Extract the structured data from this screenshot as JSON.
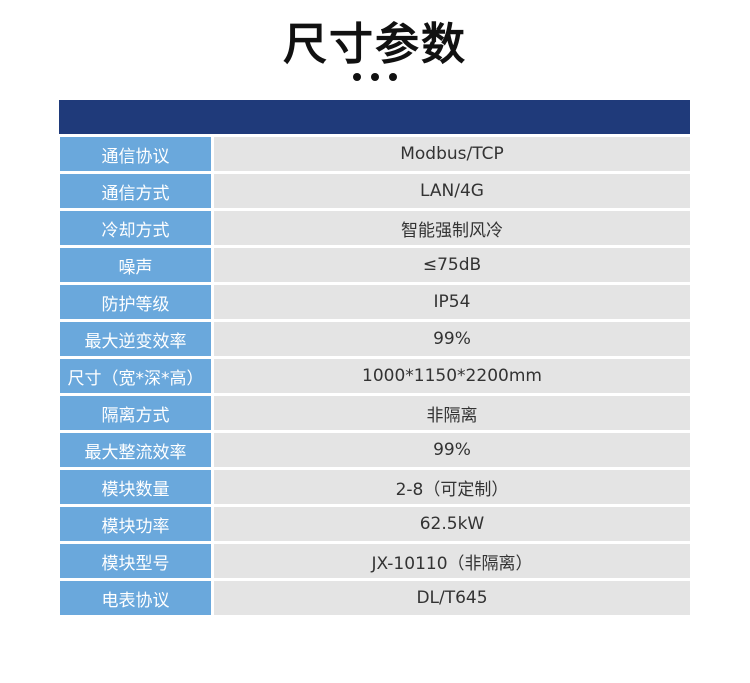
{
  "title": "尺寸参数",
  "colors": {
    "header": "#1f3a7a",
    "label_bg": "#6aa8dc",
    "value_bg": "#e4e4e4"
  },
  "rows": [
    {
      "label": "通信协议",
      "value": "Modbus/TCP"
    },
    {
      "label": "通信方式",
      "value": "LAN/4G"
    },
    {
      "label": "冷却方式",
      "value": "智能强制风冷"
    },
    {
      "label": "噪声",
      "value": "≤75dB"
    },
    {
      "label": "防护等级",
      "value": "IP54"
    },
    {
      "label": "最大逆变效率",
      "value": "99%"
    },
    {
      "label": "尺寸（宽*深*高）",
      "value": "1000*1150*2200mm"
    },
    {
      "label": "隔离方式",
      "value": "非隔离"
    },
    {
      "label": "最大整流效率",
      "value": "99%"
    },
    {
      "label": "模块数量",
      "value": "2-8（可定制）"
    },
    {
      "label": "模块功率",
      "value": "62.5kW"
    },
    {
      "label": "模块型号",
      "value": "JX-10110（非隔离）"
    },
    {
      "label": "电表协议",
      "value": "DL/T645"
    }
  ]
}
